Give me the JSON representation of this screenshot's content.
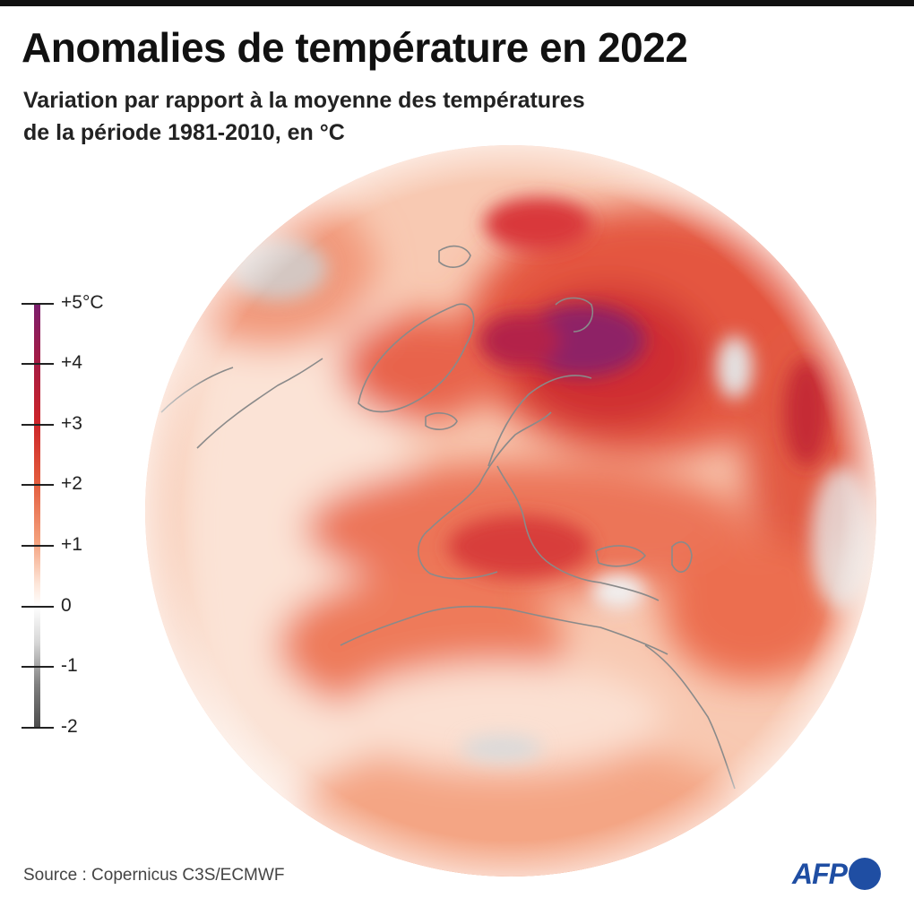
{
  "header": {
    "title": "Anomalies de température en 2022",
    "subtitle_line1": "Variation par rapport à la moyenne des températures",
    "subtitle_line2": "de la période 1981-2010, en °C"
  },
  "legend": {
    "ticks": [
      "+5°C",
      "+4",
      "+3",
      "+2",
      "+1",
      "0",
      "-1",
      "-2"
    ],
    "max_value": 5,
    "min_value": -2,
    "colors": {
      "plus5": "#7b1e6e",
      "plus4": "#a51c44",
      "plus3": "#cc2429",
      "plus2": "#e35b3c",
      "plus1": "#f4a07c",
      "zero": "#ffffff",
      "minus1": "#c4c4c4",
      "minus2": "#4d4d4d"
    }
  },
  "footer": {
    "source": "Source : Copernicus C3S/ECMWF",
    "logo_text": "AFP",
    "logo_color": "#1f4ea3"
  }
}
